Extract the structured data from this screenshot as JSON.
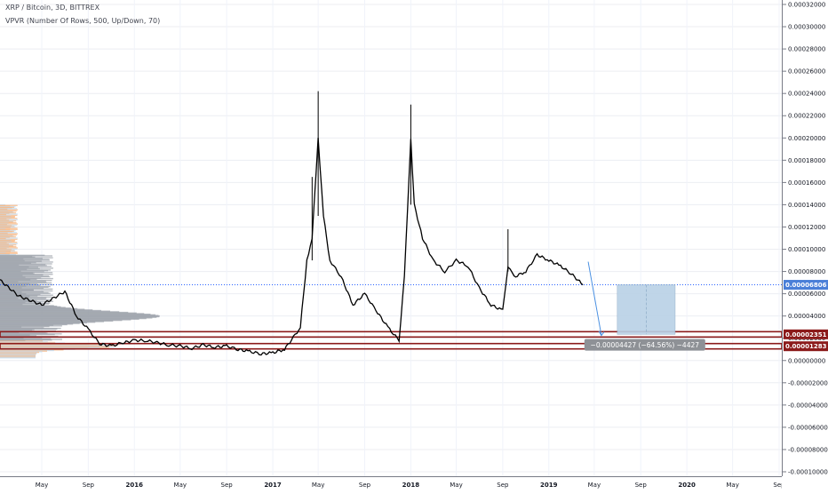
{
  "header": {
    "title": "XRP / Bitcoin, 3D, BITTREX",
    "indicator": "VPVR (Number Of Rows, 500, Up/Down, 70)"
  },
  "colors": {
    "candle": "#000000",
    "last_price_line": "#2962ff",
    "last_price_tag": "#4a7fd8",
    "level": "#8b1a1a",
    "target_box": "#b9d1e6",
    "arrow": "#4a90e2",
    "vp_up": "#9aa0a8",
    "vp_down_value": "#f7b27a",
    "vp_up_value": "#bcdcf5",
    "measure_label_bg": "#8e9196"
  },
  "chart_data": {
    "type": "line",
    "symbol": "XRP / Bitcoin",
    "timeframe": "3D",
    "exchange": "BITTREX",
    "y_ticks": [
      "0.00032000",
      "0.00030000",
      "0.00028000",
      "0.00026000",
      "0.00024000",
      "0.00022000",
      "0.00020000",
      "0.00018000",
      "0.00016000",
      "0.00014000",
      "0.00012000",
      "0.00010000",
      "0.00008000",
      "0.00006000",
      "0.00004000",
      "0.00002000",
      "0.00000000",
      "-0.00002000",
      "-0.00004000",
      "-0.00006000",
      "-0.00008000",
      "-0.00010000"
    ],
    "ylim": [
      -0.0001,
      0.00032
    ],
    "x_ticks": [
      "May",
      "Sep",
      "2016",
      "May",
      "Sep",
      "2017",
      "May",
      "Sep",
      "2018",
      "May",
      "Sep",
      "2019",
      "May",
      "Sep",
      "2020",
      "May",
      "Sep"
    ],
    "x_tick_values": [
      "2015-05",
      "2015-09",
      "2016-01",
      "2016-05",
      "2016-09",
      "2017-01",
      "2017-05",
      "2017-09",
      "2018-01",
      "2018-05",
      "2018-09",
      "2019-01",
      "2019-05",
      "2019-09",
      "2020-01",
      "2020-05",
      "2020-09"
    ],
    "series": [
      {
        "x": [
          "2015-01",
          "2015-03",
          "2015-05",
          "2015-07",
          "2015-08",
          "2015-09",
          "2015-10",
          "2015-11",
          "2015-12",
          "2016-01",
          "2016-02",
          "2016-03",
          "2016-04",
          "2016-05",
          "2016-06",
          "2016-07",
          "2016-08",
          "2016-09",
          "2016-10",
          "2016-11",
          "2016-12",
          "2017-01",
          "2017-02",
          "2017-03",
          "2017-03-15",
          "2017-04",
          "2017-04-15",
          "2017-05",
          "2017-05-15",
          "2017-06",
          "2017-07",
          "2017-08",
          "2017-09",
          "2017-10",
          "2017-11",
          "2017-12",
          "2017-12-15",
          "2018-01",
          "2018-01-10",
          "2018-02",
          "2018-03",
          "2018-04",
          "2018-05",
          "2018-06",
          "2018-07",
          "2018-08",
          "2018-09",
          "2018-09-15",
          "2018-10",
          "2018-11",
          "2018-12",
          "2019-01",
          "2019-02",
          "2019-03",
          "2019-04"
        ],
        "y": [
          7.5e-05,
          5.8e-05,
          5e-05,
          6.2e-05,
          4e-05,
          2.8e-05,
          1.5e-05,
          1.3e-05,
          1.6e-05,
          1.8e-05,
          1.8e-05,
          1.6e-05,
          1.4e-05,
          1.3e-05,
          1.1e-05,
          1.4e-05,
          1.2e-05,
          1.3e-05,
          1e-05,
          8e-06,
          6e-06,
          7e-06,
          1e-05,
          2.3e-05,
          3e-05,
          9e-05,
          0.00011,
          0.0002,
          0.00013,
          9e-05,
          7.5e-05,
          5e-05,
          6e-05,
          4.5e-05,
          3e-05,
          1.8e-05,
          7.5e-05,
          0.0002,
          0.00014,
          0.00011,
          9e-05,
          8e-05,
          9e-05,
          8.5e-05,
          6.5e-05,
          5e-05,
          4.5e-05,
          8.5e-05,
          7.5e-05,
          8e-05,
          9.5e-05,
          9e-05,
          8.5e-05,
          7.8e-05,
          6.8e-05
        ]
      }
    ],
    "last_price": "0.00006806",
    "levels": [
      {
        "label": "0.00002351",
        "value": 2.351e-05
      },
      {
        "label": "0.00001283",
        "value": 1.283e-05
      }
    ],
    "measure_label": "−0.00004427 (−64.56%) −4427"
  }
}
